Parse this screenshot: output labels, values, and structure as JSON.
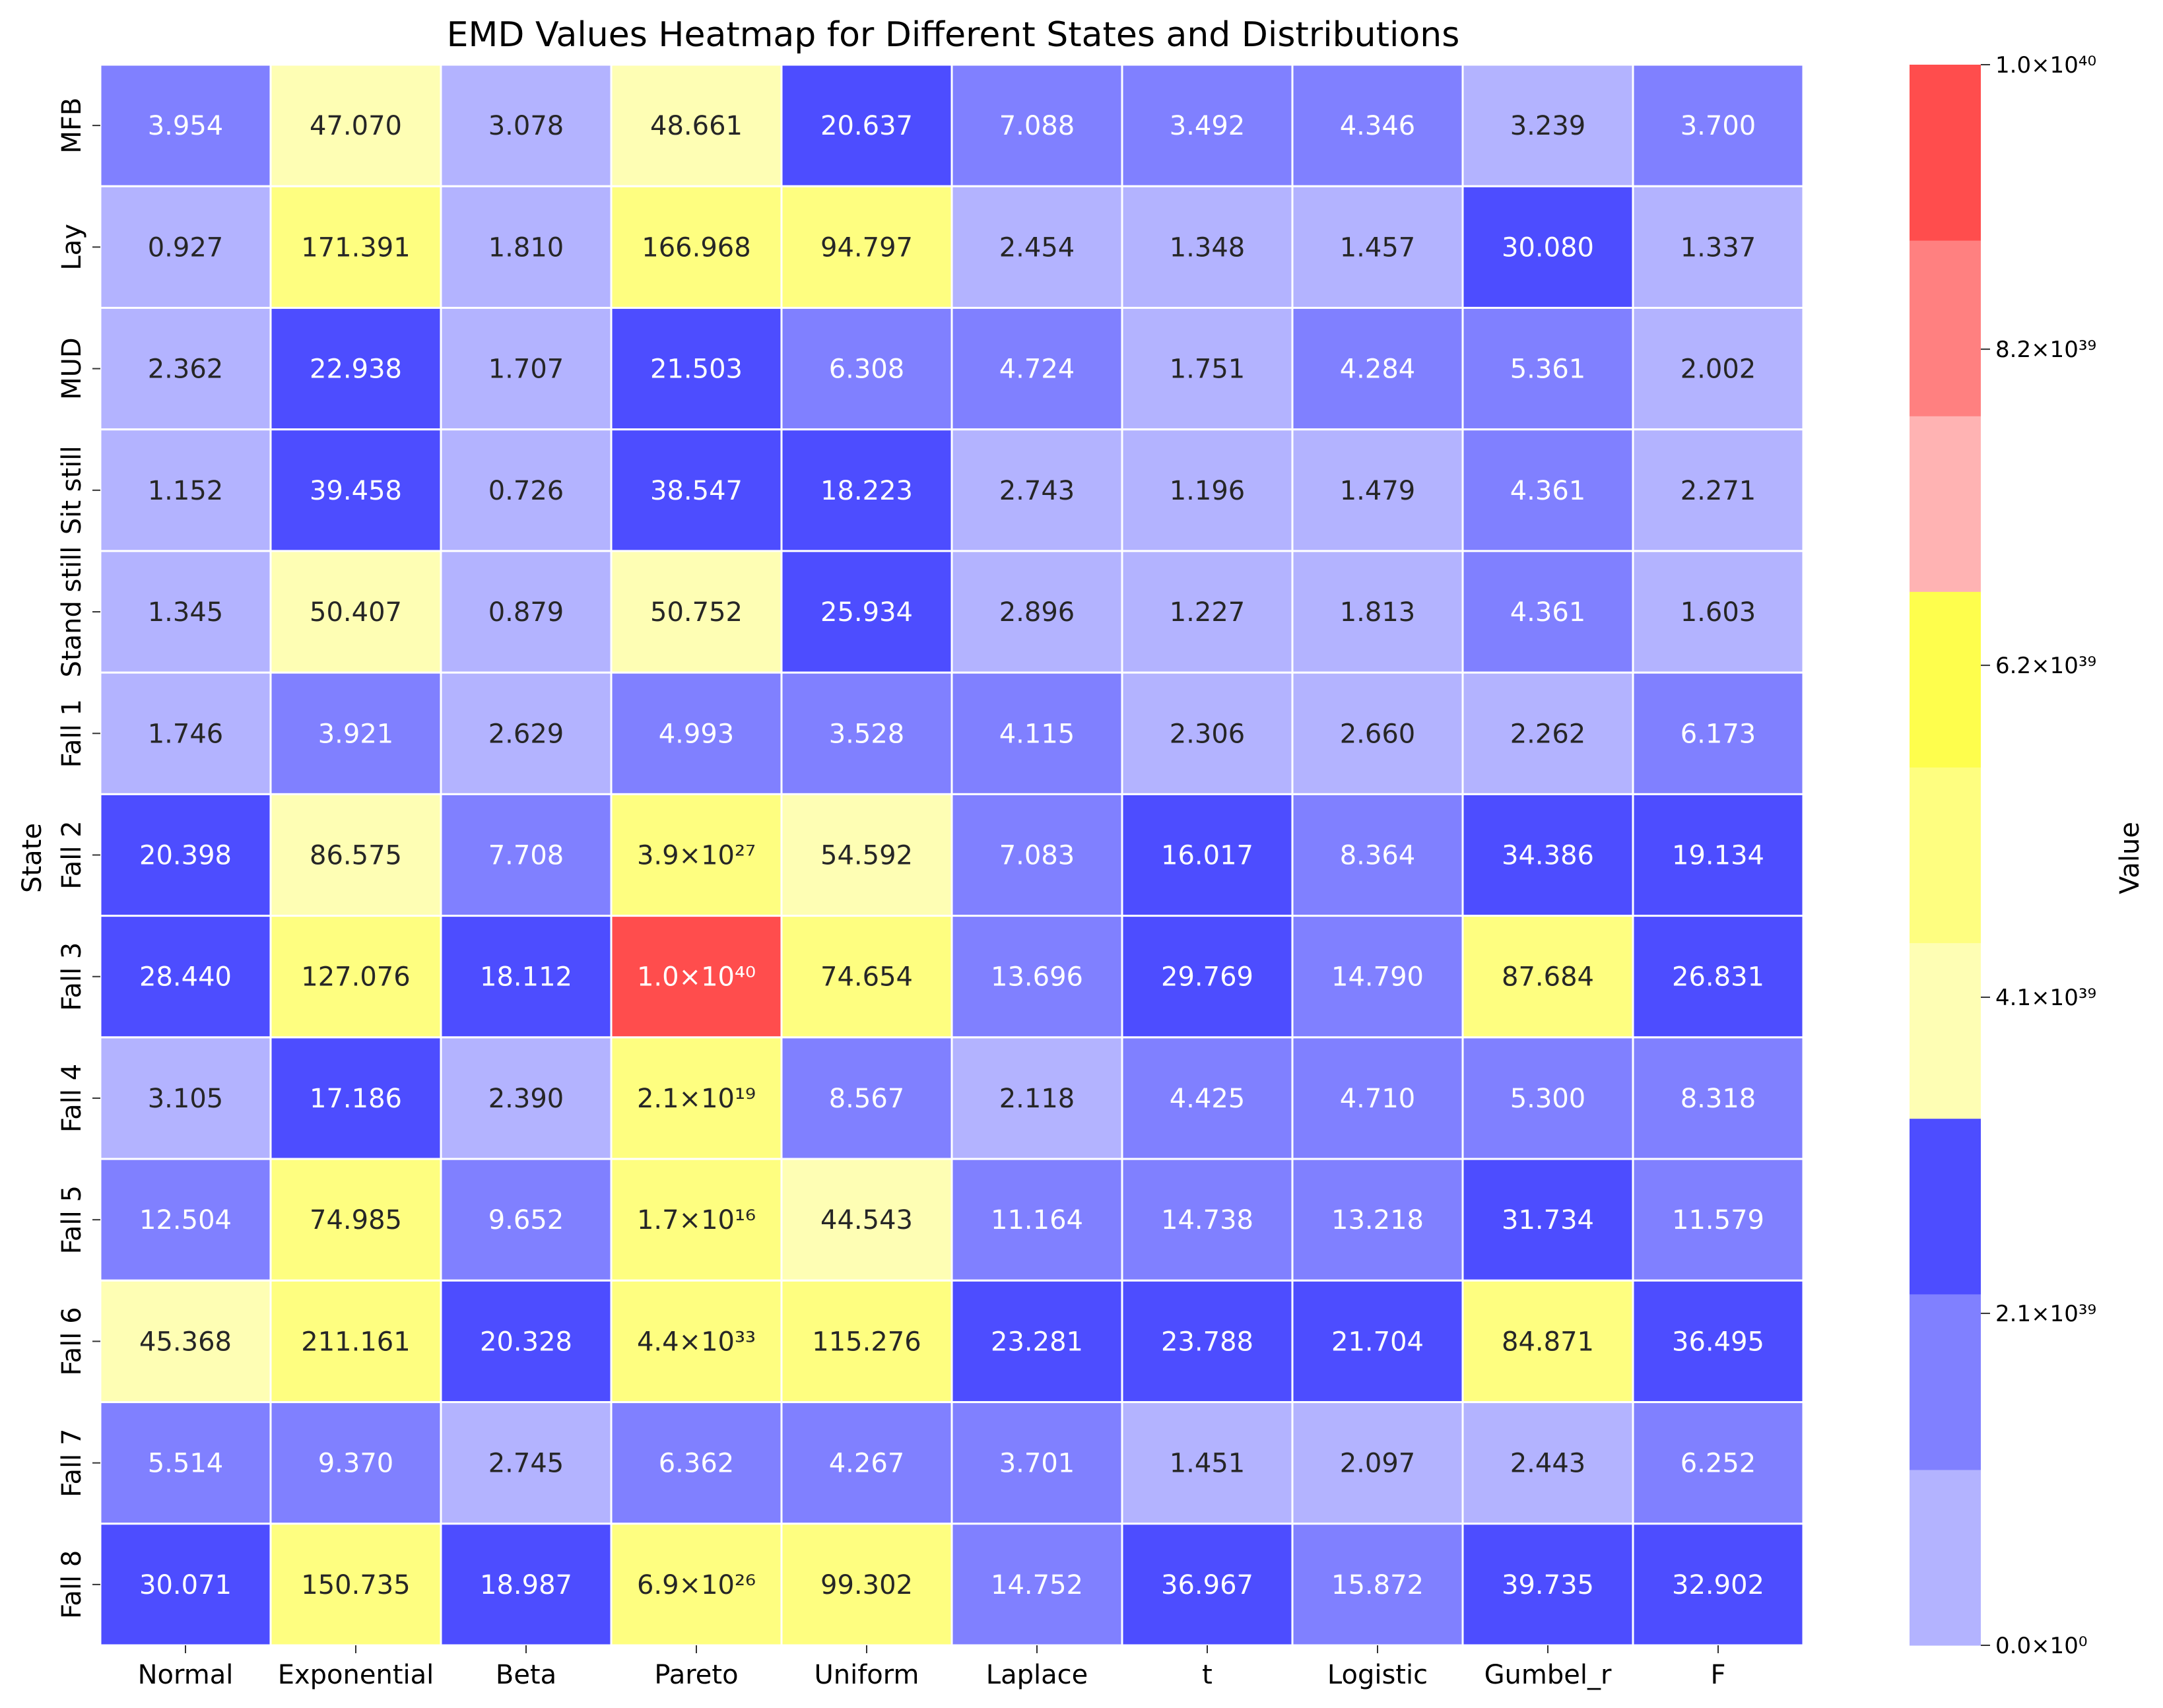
{
  "chart_data": {
    "type": "heatmap",
    "title": "EMD Values Heatmap for Different States and Distributions",
    "xlabel": "",
    "ylabel": "State",
    "colorbar_label": "Value",
    "columns": [
      "Normal",
      "Exponential",
      "Beta",
      "Pareto",
      "Uniform",
      "Laplace",
      "t",
      "Logistic",
      "Gumbel_r",
      "F"
    ],
    "rows": [
      "MFB",
      "Lay",
      "MUD",
      "Sit still",
      "Stand still",
      "Fall 1",
      "Fall 2",
      "Fall 3",
      "Fall 4",
      "Fall 5",
      "Fall 6",
      "Fall 7",
      "Fall 8"
    ],
    "cells": [
      [
        "3.954",
        "47.070",
        "3.078",
        "48.661",
        "20.637",
        "7.088",
        "3.492",
        "4.346",
        "3.239",
        "3.700"
      ],
      [
        "0.927",
        "171.391",
        "1.810",
        "166.968",
        "94.797",
        "2.454",
        "1.348",
        "1.457",
        "30.080",
        "1.337"
      ],
      [
        "2.362",
        "22.938",
        "1.707",
        "21.503",
        "6.308",
        "4.724",
        "1.751",
        "4.284",
        "5.361",
        "2.002"
      ],
      [
        "1.152",
        "39.458",
        "0.726",
        "38.547",
        "18.223",
        "2.743",
        "1.196",
        "1.479",
        "4.361",
        "2.271"
      ],
      [
        "1.345",
        "50.407",
        "0.879",
        "50.752",
        "25.934",
        "2.896",
        "1.227",
        "1.813",
        "4.361",
        "1.603"
      ],
      [
        "1.746",
        "3.921",
        "2.629",
        "4.993",
        "3.528",
        "4.115",
        "2.306",
        "2.660",
        "2.262",
        "6.173"
      ],
      [
        "20.398",
        "86.575",
        "7.708",
        "3.9×10²⁷",
        "54.592",
        "7.083",
        "16.017",
        "8.364",
        "34.386",
        "19.134"
      ],
      [
        "28.440",
        "127.076",
        "18.112",
        "1.0×10⁴⁰",
        "74.654",
        "13.696",
        "29.769",
        "14.790",
        "87.684",
        "26.831"
      ],
      [
        "3.105",
        "17.186",
        "2.390",
        "2.1×10¹⁹",
        "8.567",
        "2.118",
        "4.425",
        "4.710",
        "5.300",
        "8.318"
      ],
      [
        "12.504",
        "74.985",
        "9.652",
        "1.7×10¹⁶",
        "44.543",
        "11.164",
        "14.738",
        "13.218",
        "31.734",
        "11.579"
      ],
      [
        "45.368",
        "211.161",
        "20.328",
        "4.4×10³³",
        "115.276",
        "23.281",
        "23.788",
        "21.704",
        "84.871",
        "36.495"
      ],
      [
        "5.514",
        "9.370",
        "2.745",
        "6.362",
        "4.267",
        "3.701",
        "1.451",
        "2.097",
        "2.443",
        "6.252"
      ],
      [
        "30.071",
        "150.735",
        "18.987",
        "6.9×10²⁶",
        "99.302",
        "14.752",
        "36.967",
        "15.872",
        "39.735",
        "32.902"
      ]
    ],
    "cell_color_level": [
      [
        1,
        3,
        0,
        3,
        2,
        1,
        1,
        1,
        0,
        1
      ],
      [
        0,
        4,
        0,
        4,
        4,
        0,
        0,
        0,
        2,
        0
      ],
      [
        0,
        2,
        0,
        2,
        1,
        1,
        0,
        1,
        1,
        0
      ],
      [
        0,
        2,
        0,
        2,
        2,
        0,
        0,
        0,
        1,
        0
      ],
      [
        0,
        3,
        0,
        3,
        2,
        0,
        0,
        0,
        1,
        0
      ],
      [
        0,
        1,
        0,
        1,
        1,
        1,
        0,
        0,
        0,
        1
      ],
      [
        2,
        3,
        1,
        4,
        3,
        1,
        2,
        1,
        2,
        2
      ],
      [
        2,
        4,
        2,
        8,
        4,
        1,
        2,
        1,
        4,
        2
      ],
      [
        0,
        2,
        0,
        4,
        1,
        0,
        1,
        1,
        1,
        1
      ],
      [
        1,
        4,
        1,
        4,
        3,
        1,
        1,
        1,
        2,
        1
      ],
      [
        3,
        4,
        2,
        4,
        4,
        2,
        2,
        2,
        4,
        2
      ],
      [
        1,
        1,
        0,
        1,
        1,
        1,
        0,
        0,
        0,
        1
      ],
      [
        2,
        4,
        2,
        4,
        4,
        1,
        2,
        1,
        2,
        2
      ]
    ],
    "colorbar_colors": [
      "#b3b3ff",
      "#8080ff",
      "#4d4dff",
      "#fefeb4",
      "#fefe80",
      "#fefe4d",
      "#ffb3b3",
      "#ff8080",
      "#ff4d4d"
    ],
    "colorbar_range": [
      0,
      1e+40
    ],
    "colorbar_ticks": [
      0,
      2.1e+39,
      4.1e+39,
      6.2e+39,
      8.2e+39,
      1e+40
    ],
    "colorbar_tick_labels": [
      "0.0×10⁰",
      "2.1×10³⁹",
      "4.1×10³⁹",
      "6.2×10³⁹",
      "8.2×10³⁹",
      "1.0×10⁴⁰"
    ],
    "grid": true,
    "legend": "colorbar-right"
  }
}
